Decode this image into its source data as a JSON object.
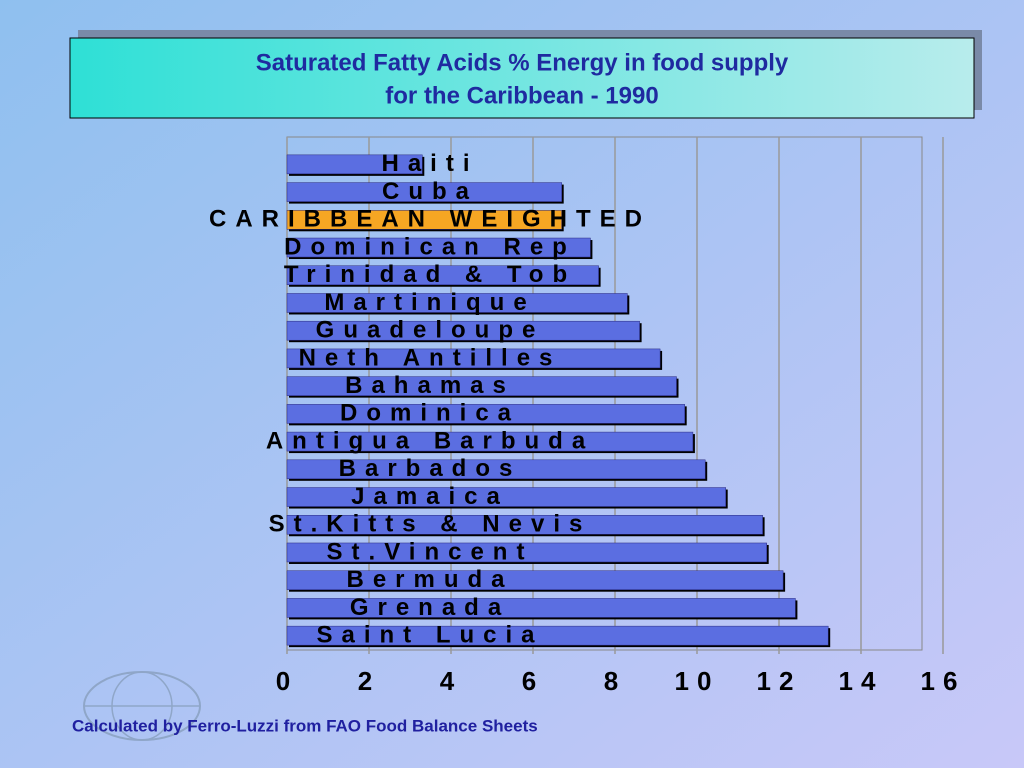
{
  "chart_data": {
    "type": "hbar",
    "title": "Saturated Fatty Acids % Energy in food supply",
    "subtitle": "for the Caribbean - 1990",
    "categories": [
      "Haiti",
      "Cuba",
      "CARIBBEAN WEIGHTED",
      "Dominican Rep",
      "Trinidad & Tob",
      "Martinique",
      "Guadeloupe",
      "Neth Antilles",
      "Bahamas",
      "Dominica",
      "Antigua Barbuda",
      "Barbados",
      "Jamaica",
      "St.Kitts & Nevis",
      "St.Vincent",
      "Bermuda",
      "Grenada",
      "Saint Lucia"
    ],
    "values": [
      3.3,
      6.7,
      6.7,
      7.4,
      7.6,
      8.3,
      8.6,
      9.1,
      9.5,
      9.7,
      9.9,
      10.2,
      10.7,
      11.6,
      11.7,
      12.1,
      12.4,
      13.2
    ],
    "colors": [
      "#5b6ee1",
      "#5b6ee1",
      "#f6a623",
      "#5b6ee1",
      "#5b6ee1",
      "#5b6ee1",
      "#5b6ee1",
      "#5b6ee1",
      "#5b6ee1",
      "#5b6ee1",
      "#5b6ee1",
      "#5b6ee1",
      "#5b6ee1",
      "#5b6ee1",
      "#5b6ee1",
      "#5b6ee1",
      "#5b6ee1",
      "#5b6ee1"
    ],
    "xlim": [
      0,
      16
    ],
    "xticks": [
      0,
      2,
      4,
      6,
      8,
      10,
      12,
      14,
      16
    ],
    "grid": true,
    "source": "Calculated by Ferro-Luzzi from FAO Food Balance Sheets"
  }
}
